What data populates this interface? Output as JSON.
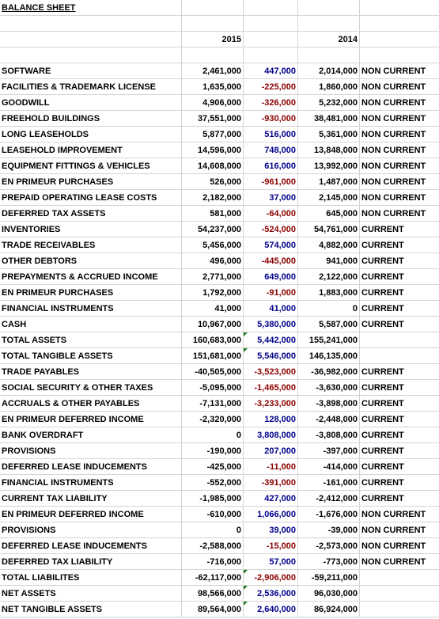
{
  "title": "BALANCE SHEET",
  "years": {
    "current": "2015",
    "prior": "2014"
  },
  "rows": [
    {
      "label": "SOFTWARE",
      "y2015": "2,461,000",
      "change": "447,000",
      "y2014": "2,014,000",
      "class": "NON CURRENT",
      "sign": "pos"
    },
    {
      "label": "FACILITIES & TRADEMARK LICENSE",
      "y2015": "1,635,000",
      "change": "-225,000",
      "y2014": "1,860,000",
      "class": "NON CURRENT",
      "sign": "neg"
    },
    {
      "label": "GOODWILL",
      "y2015": "4,906,000",
      "change": "-326,000",
      "y2014": "5,232,000",
      "class": "NON CURRENT",
      "sign": "neg"
    },
    {
      "label": "FREEHOLD BUILDINGS",
      "y2015": "37,551,000",
      "change": "-930,000",
      "y2014": "38,481,000",
      "class": "NON CURRENT",
      "sign": "neg"
    },
    {
      "label": "LONG LEASEHOLDS",
      "y2015": "5,877,000",
      "change": "516,000",
      "y2014": "5,361,000",
      "class": "NON CURRENT",
      "sign": "pos"
    },
    {
      "label": "LEASEHOLD IMPROVEMENT",
      "y2015": "14,596,000",
      "change": "748,000",
      "y2014": "13,848,000",
      "class": "NON CURRENT",
      "sign": "pos"
    },
    {
      "label": "EQUIPMENT FITTINGS & VEHICLES",
      "y2015": "14,608,000",
      "change": "616,000",
      "y2014": "13,992,000",
      "class": "NON CURRENT",
      "sign": "pos"
    },
    {
      "label": "EN PRIMEUR PURCHASES",
      "y2015": "526,000",
      "change": "-961,000",
      "y2014": "1,487,000",
      "class": "NON CURRENT",
      "sign": "neg"
    },
    {
      "label": "PREPAID OPERATING LEASE COSTS",
      "y2015": "2,182,000",
      "change": "37,000",
      "y2014": "2,145,000",
      "class": "NON CURRENT",
      "sign": "pos"
    },
    {
      "label": "DEFERRED TAX ASSETS",
      "y2015": "581,000",
      "change": "-64,000",
      "y2014": "645,000",
      "class": "NON CURRENT",
      "sign": "neg"
    },
    {
      "label": "INVENTORIES",
      "y2015": "54,237,000",
      "change": "-524,000",
      "y2014": "54,761,000",
      "class": "CURRENT",
      "sign": "neg"
    },
    {
      "label": "TRADE RECEIVABLES",
      "y2015": "5,456,000",
      "change": "574,000",
      "y2014": "4,882,000",
      "class": "CURRENT",
      "sign": "pos"
    },
    {
      "label": "OTHER DEBTORS",
      "y2015": "496,000",
      "change": "-445,000",
      "y2014": "941,000",
      "class": "CURRENT",
      "sign": "neg"
    },
    {
      "label": "PREPAYMENTS & ACCRUED INCOME",
      "y2015": "2,771,000",
      "change": "649,000",
      "y2014": "2,122,000",
      "class": "CURRENT",
      "sign": "pos"
    },
    {
      "label": "EN PRIMEUR PURCHASES",
      "y2015": "1,792,000",
      "change": "-91,000",
      "y2014": "1,883,000",
      "class": "CURRENT",
      "sign": "neg"
    },
    {
      "label": "FINANCIAL INSTRUMENTS",
      "y2015": "41,000",
      "change": "41,000",
      "y2014": "0",
      "class": "CURRENT",
      "sign": "pos"
    },
    {
      "label": "CASH",
      "y2015": "10,967,000",
      "change": "5,380,000",
      "y2014": "5,587,000",
      "class": "CURRENT",
      "sign": "pos"
    },
    {
      "label": "TOTAL ASSETS",
      "y2015": "160,683,000",
      "change": "5,442,000",
      "y2014": "155,241,000",
      "class": "",
      "sign": "pos",
      "flag": true
    },
    {
      "label": "TOTAL TANGIBLE ASSETS",
      "y2015": "151,681,000",
      "change": "5,546,000",
      "y2014": "146,135,000",
      "class": "",
      "sign": "pos",
      "flag": true
    },
    {
      "label": "TRADE PAYABLES",
      "y2015": "-40,505,000",
      "change": "-3,523,000",
      "y2014": "-36,982,000",
      "class": "CURRENT",
      "sign": "neg"
    },
    {
      "label": "SOCIAL SECURITY & OTHER TAXES",
      "y2015": "-5,095,000",
      "change": "-1,465,000",
      "y2014": "-3,630,000",
      "class": "CURRENT",
      "sign": "neg"
    },
    {
      "label": "ACCRUALS & OTHER PAYABLES",
      "y2015": "-7,131,000",
      "change": "-3,233,000",
      "y2014": "-3,898,000",
      "class": "CURRENT",
      "sign": "neg"
    },
    {
      "label": "EN PRIMEUR DEFERRED INCOME",
      "y2015": "-2,320,000",
      "change": "128,000",
      "y2014": "-2,448,000",
      "class": "CURRENT",
      "sign": "pos"
    },
    {
      "label": "BANK OVERDRAFT",
      "y2015": "0",
      "change": "3,808,000",
      "y2014": "-3,808,000",
      "class": "CURRENT",
      "sign": "pos"
    },
    {
      "label": "PROVISIONS",
      "y2015": "-190,000",
      "change": "207,000",
      "y2014": "-397,000",
      "class": "CURRENT",
      "sign": "pos"
    },
    {
      "label": "DEFERRED LEASE INDUCEMENTS",
      "y2015": "-425,000",
      "change": "-11,000",
      "y2014": "-414,000",
      "class": "CURRENT",
      "sign": "neg"
    },
    {
      "label": "FINANCIAL INSTRUMENTS",
      "y2015": "-552,000",
      "change": "-391,000",
      "y2014": "-161,000",
      "class": "CURRENT",
      "sign": "neg"
    },
    {
      "label": "CURRENT TAX LIABILITY",
      "y2015": "-1,985,000",
      "change": "427,000",
      "y2014": "-2,412,000",
      "class": "CURRENT",
      "sign": "pos"
    },
    {
      "label": "EN PRIMEUR DEFERRED INCOME",
      "y2015": "-610,000",
      "change": "1,066,000",
      "y2014": "-1,676,000",
      "class": "NON CURRENT",
      "sign": "pos"
    },
    {
      "label": "PROVISIONS",
      "y2015": "0",
      "change": "39,000",
      "y2014": "-39,000",
      "class": "NON CURRENT",
      "sign": "pos"
    },
    {
      "label": "DEFERRED LEASE INDUCEMENTS",
      "y2015": "-2,588,000",
      "change": "-15,000",
      "y2014": "-2,573,000",
      "class": "NON CURRENT",
      "sign": "neg"
    },
    {
      "label": "DEFERRED TAX LIABILITY",
      "y2015": "-716,000",
      "change": "57,000",
      "y2014": "-773,000",
      "class": "NON CURRENT",
      "sign": "pos"
    },
    {
      "label": "TOTAL LIABILITES",
      "y2015": "-62,117,000",
      "change": "-2,906,000",
      "y2014": "-59,211,000",
      "class": "",
      "sign": "neg",
      "flag": true
    },
    {
      "label": "NET ASSETS",
      "y2015": "98,566,000",
      "change": "2,536,000",
      "y2014": "96,030,000",
      "class": "",
      "sign": "pos",
      "flag": true
    },
    {
      "label": "NET TANGIBLE ASSETS",
      "y2015": "89,564,000",
      "change": "2,640,000",
      "y2014": "86,924,000",
      "class": "",
      "sign": "pos",
      "flag": true
    }
  ]
}
